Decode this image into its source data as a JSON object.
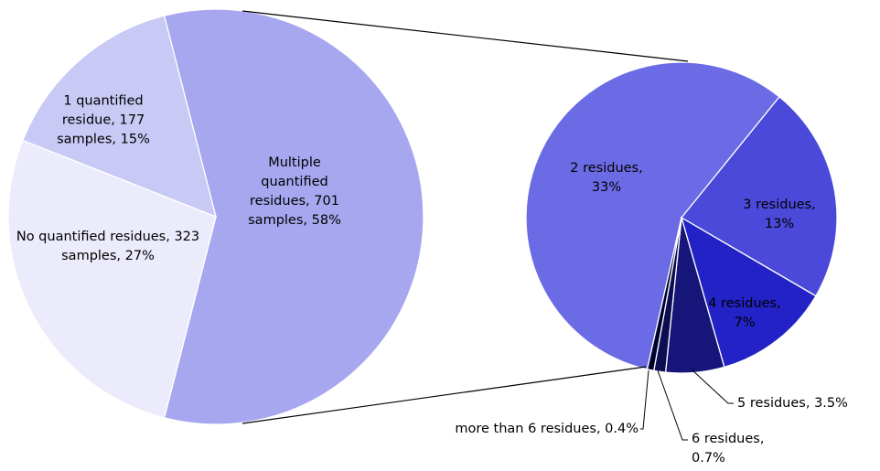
{
  "chart_data": [
    {
      "type": "pie",
      "labels": [
        "Multiple quantified residues, 701 samples, 58%",
        "No quantified residues, 323 samples, 27%",
        "1 quantified residue, 177 samples, 15%"
      ],
      "values": [
        58,
        27,
        15
      ],
      "colors": [
        "#a6a7ef",
        "#ebebfb",
        "#c8c9f5"
      ]
    },
    {
      "type": "pie",
      "labels": [
        "2 residues, 33%",
        "3 residues, 13%",
        "4 residues, 7%",
        "5 residues, 3.5%",
        "6 residues, 0.7%",
        "more than 6 residues, 0.4%"
      ],
      "values": [
        33,
        13,
        7,
        3.5,
        0.7,
        0.4
      ],
      "colors": [
        "#6b6be6",
        "#4a49d9",
        "#2222c6",
        "#16167a",
        "#0d0d52",
        "#000030"
      ]
    }
  ]
}
